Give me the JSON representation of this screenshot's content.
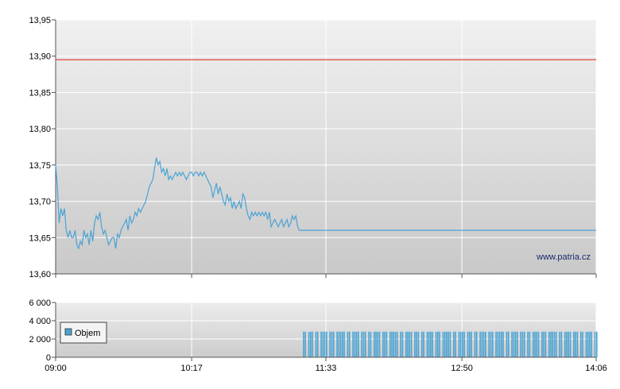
{
  "watermark": "www.patria.cz",
  "colors": {
    "price_line": "#4aa3d3",
    "reference_line": "#e0433b",
    "volume_bar": "#4aa3d3",
    "grid": "#ffffff",
    "panel_top": "#f0f0f0",
    "panel_bottom": "#c9c9c9"
  },
  "chart_data": [
    {
      "type": "line",
      "panel": "price",
      "x_ticks": [
        "09:00",
        "10:17",
        "11:33",
        "12:50",
        "14:06"
      ],
      "y_ticks": [
        "13,95",
        "13,90",
        "13,85",
        "13,80",
        "13,75",
        "13,70",
        "13,65",
        "13,60"
      ],
      "ylim": [
        13.6,
        13.95
      ],
      "xlim": [
        "09:00",
        "14:06"
      ],
      "grid": true,
      "reference_line": {
        "value": 13.895
      },
      "series": [
        {
          "points": [
            [
              "09:00",
              13.75
            ],
            [
              "09:01",
              13.72
            ],
            [
              "09:02",
              13.67
            ],
            [
              "09:03",
              13.69
            ],
            [
              "09:04",
              13.68
            ],
            [
              "09:05",
              13.69
            ],
            [
              "09:06",
              13.66
            ],
            [
              "09:07",
              13.65
            ],
            [
              "09:08",
              13.66
            ],
            [
              "09:09",
              13.65
            ],
            [
              "09:10",
              13.65
            ],
            [
              "09:11",
              13.66
            ],
            [
              "09:12",
              13.64
            ],
            [
              "09:13",
              13.635
            ],
            [
              "09:14",
              13.645
            ],
            [
              "09:15",
              13.64
            ],
            [
              "09:16",
              13.66
            ],
            [
              "09:17",
              13.65
            ],
            [
              "09:18",
              13.655
            ],
            [
              "09:19",
              13.64
            ],
            [
              "09:20",
              13.66
            ],
            [
              "09:21",
              13.645
            ],
            [
              "09:22",
              13.67
            ],
            [
              "09:23",
              13.68
            ],
            [
              "09:24",
              13.675
            ],
            [
              "09:25",
              13.685
            ],
            [
              "09:26",
              13.665
            ],
            [
              "09:27",
              13.655
            ],
            [
              "09:28",
              13.66
            ],
            [
              "09:29",
              13.65
            ],
            [
              "09:30",
              13.64
            ],
            [
              "09:31",
              13.645
            ],
            [
              "09:32",
              13.65
            ],
            [
              "09:33",
              13.65
            ],
            [
              "09:34",
              13.635
            ],
            [
              "09:35",
              13.655
            ],
            [
              "09:36",
              13.65
            ],
            [
              "09:37",
              13.66
            ],
            [
              "09:38",
              13.665
            ],
            [
              "09:39",
              13.67
            ],
            [
              "09:40",
              13.675
            ],
            [
              "09:41",
              13.66
            ],
            [
              "09:42",
              13.68
            ],
            [
              "09:43",
              13.67
            ],
            [
              "09:44",
              13.675
            ],
            [
              "09:45",
              13.685
            ],
            [
              "09:46",
              13.68
            ],
            [
              "09:47",
              13.69
            ],
            [
              "09:48",
              13.685
            ],
            [
              "09:49",
              13.69
            ],
            [
              "09:50",
              13.695
            ],
            [
              "09:51",
              13.7
            ],
            [
              "09:52",
              13.71
            ],
            [
              "09:53",
              13.72
            ],
            [
              "09:54",
              13.725
            ],
            [
              "09:55",
              13.73
            ],
            [
              "09:56",
              13.745
            ],
            [
              "09:57",
              13.76
            ],
            [
              "09:58",
              13.75
            ],
            [
              "09:59",
              13.755
            ],
            [
              "10:00",
              13.74
            ],
            [
              "10:01",
              13.745
            ],
            [
              "10:02",
              13.735
            ],
            [
              "10:03",
              13.745
            ],
            [
              "10:04",
              13.73
            ],
            [
              "10:05",
              13.735
            ],
            [
              "10:06",
              13.73
            ],
            [
              "10:07",
              13.735
            ],
            [
              "10:08",
              13.74
            ],
            [
              "10:09",
              13.735
            ],
            [
              "10:10",
              13.74
            ],
            [
              "10:11",
              13.735
            ],
            [
              "10:12",
              13.74
            ],
            [
              "10:13",
              13.735
            ],
            [
              "10:14",
              13.73
            ],
            [
              "10:15",
              13.735
            ],
            [
              "10:16",
              13.74
            ],
            [
              "10:17",
              13.74
            ],
            [
              "10:18",
              13.735
            ],
            [
              "10:19",
              13.74
            ],
            [
              "10:20",
              13.74
            ],
            [
              "10:21",
              13.735
            ],
            [
              "10:22",
              13.74
            ],
            [
              "10:23",
              13.735
            ],
            [
              "10:24",
              13.74
            ],
            [
              "10:25",
              13.735
            ],
            [
              "10:26",
              13.73
            ],
            [
              "10:27",
              13.725
            ],
            [
              "10:28",
              13.72
            ],
            [
              "10:29",
              13.705
            ],
            [
              "10:30",
              13.715
            ],
            [
              "10:31",
              13.725
            ],
            [
              "10:32",
              13.71
            ],
            [
              "10:33",
              13.72
            ],
            [
              "10:34",
              13.71
            ],
            [
              "10:35",
              13.7
            ],
            [
              "10:36",
              13.695
            ],
            [
              "10:37",
              13.71
            ],
            [
              "10:38",
              13.7
            ],
            [
              "10:39",
              13.705
            ],
            [
              "10:40",
              13.69
            ],
            [
              "10:41",
              13.7
            ],
            [
              "10:42",
              13.69
            ],
            [
              "10:43",
              13.695
            ],
            [
              "10:44",
              13.7
            ],
            [
              "10:45",
              13.69
            ],
            [
              "10:46",
              13.71
            ],
            [
              "10:47",
              13.705
            ],
            [
              "10:48",
              13.69
            ],
            [
              "10:49",
              13.68
            ],
            [
              "10:50",
              13.675
            ],
            [
              "10:51",
              13.685
            ],
            [
              "10:52",
              13.68
            ],
            [
              "10:53",
              13.685
            ],
            [
              "10:54",
              13.68
            ],
            [
              "10:55",
              13.685
            ],
            [
              "10:56",
              13.68
            ],
            [
              "10:57",
              13.685
            ],
            [
              "10:58",
              13.68
            ],
            [
              "10:59",
              13.685
            ],
            [
              "11:00",
              13.675
            ],
            [
              "11:01",
              13.685
            ],
            [
              "11:02",
              13.665
            ],
            [
              "11:03",
              13.67
            ],
            [
              "11:04",
              13.675
            ],
            [
              "11:05",
              13.67
            ],
            [
              "11:06",
              13.665
            ],
            [
              "11:07",
              13.67
            ],
            [
              "11:08",
              13.675
            ],
            [
              "11:09",
              13.665
            ],
            [
              "11:10",
              13.67
            ],
            [
              "11:11",
              13.675
            ],
            [
              "11:12",
              13.665
            ],
            [
              "11:13",
              13.67
            ],
            [
              "11:14",
              13.68
            ],
            [
              "11:15",
              13.675
            ],
            [
              "11:16",
              13.68
            ],
            [
              "11:17",
              13.665
            ],
            [
              "11:18",
              13.66
            ],
            [
              "11:19",
              13.66
            ],
            [
              "11:20",
              13.66
            ],
            [
              "14:06",
              13.66
            ]
          ]
        }
      ]
    },
    {
      "type": "bar",
      "panel": "volume",
      "x_ticks": [
        "09:00",
        "10:17",
        "11:33",
        "12:50",
        "14:06"
      ],
      "y_ticks": [
        "6 000",
        "4 000",
        "2 000",
        "0"
      ],
      "ylim": [
        0,
        6000
      ],
      "xlim": [
        "09:00",
        "14:06"
      ],
      "grid": true,
      "legend": {
        "label": "Objem",
        "placement": "top-left"
      },
      "series": [
        {
          "name": "Objem",
          "x_start": "11:20",
          "x_end": "14:06",
          "step_minutes": 1,
          "value": 2800,
          "gap_pattern": [
            0,
            0,
            1,
            0,
            0,
            0,
            1,
            0,
            0,
            1,
            0,
            0,
            0,
            0,
            1,
            0,
            0,
            0,
            1,
            0,
            0,
            0,
            0,
            0,
            1,
            0,
            0,
            1,
            0,
            0
          ]
        }
      ]
    }
  ]
}
